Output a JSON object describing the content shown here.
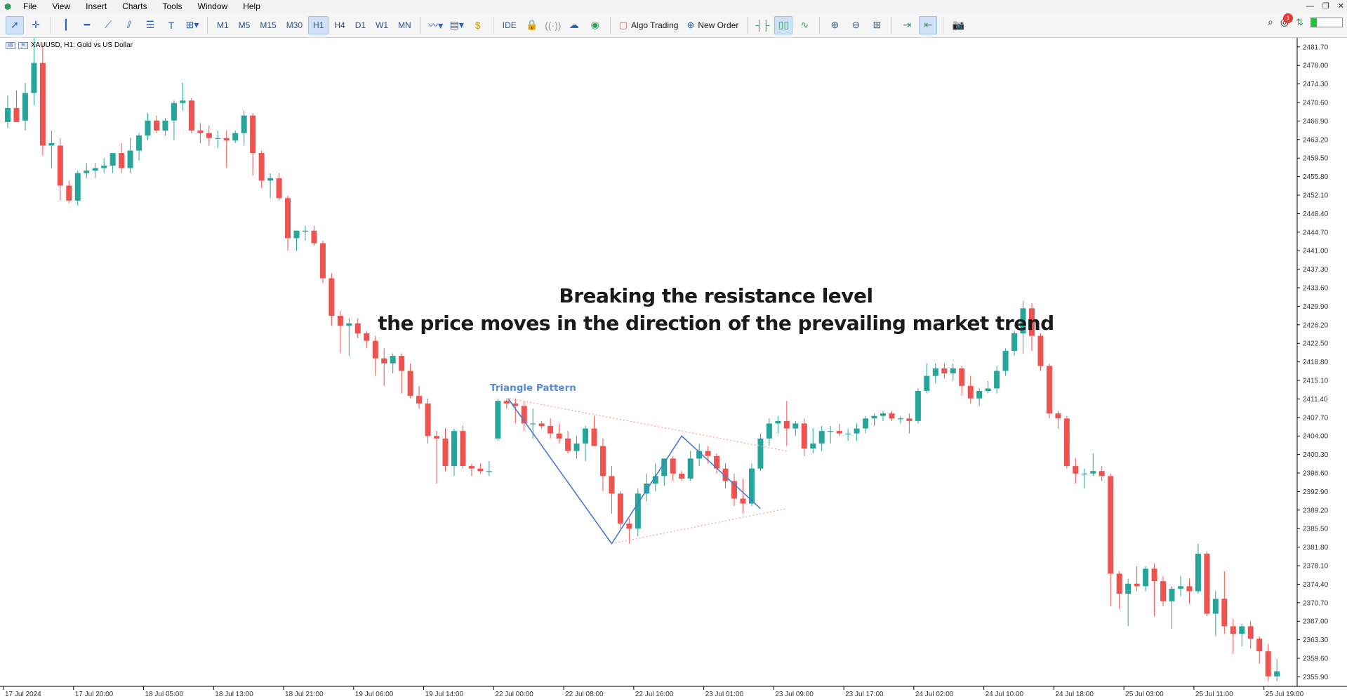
{
  "menu": {
    "items": [
      "File",
      "View",
      "Insert",
      "Charts",
      "Tools",
      "Window",
      "Help"
    ],
    "window_controls": [
      "—",
      "❐",
      "✕"
    ]
  },
  "toolbar": {
    "timeframes": [
      "M1",
      "M5",
      "M15",
      "M30",
      "H1",
      "H4",
      "D1",
      "W1",
      "MN"
    ],
    "active_timeframe": "H1",
    "ide_label": "IDE",
    "algo_trading_label": "Algo Trading",
    "new_order_label": "New Order",
    "notification_count": "1",
    "signal_strength": 0.18
  },
  "chart": {
    "symbol_label": "XAUUSD, H1:  Gold vs US Dollar",
    "annotation_line1": "Breaking the resistance level",
    "annotation_line2": "the price moves in the direction of the prevailing market trend",
    "pattern_label": "Triangle Pattern",
    "bull_color": "#26a69a",
    "bear_color": "#ef5350"
  },
  "chart_data": {
    "type": "candlestick",
    "price_axis_ticks": [
      "2481.70",
      "2478.00",
      "2474.30",
      "2470.60",
      "2466.90",
      "2463.20",
      "2459.50",
      "2455.80",
      "2452.10",
      "2448.40",
      "2444.70",
      "2441.00",
      "2437.30",
      "2433.60",
      "2429.90",
      "2426.20",
      "2422.50",
      "2418.80",
      "2415.10",
      "2411.40",
      "2407.70",
      "2404.00",
      "2400.30",
      "2396.60",
      "2392.90",
      "2389.20",
      "2385.50",
      "2381.80",
      "2378.10",
      "2374.40",
      "2370.70",
      "2367.00",
      "2363.30",
      "2359.60",
      "2355.90"
    ],
    "time_axis_ticks": [
      "17 Jul 2024",
      "17 Jul 20:00",
      "18 Jul 05:00",
      "18 Jul 13:00",
      "18 Jul 21:00",
      "19 Jul 06:00",
      "19 Jul 14:00",
      "22 Jul 00:00",
      "22 Jul 08:00",
      "22 Jul 16:00",
      "23 Jul 01:00",
      "23 Jul 09:00",
      "23 Jul 17:00",
      "24 Jul 02:00",
      "24 Jul 10:00",
      "24 Jul 18:00",
      "25 Jul 03:00",
      "25 Jul 11:00",
      "25 Jul 19:00"
    ],
    "ylim": [
      2354.0,
      2483.5
    ],
    "candles": [
      [
        2466.7,
        2472.0,
        2465.5,
        2469.5
      ],
      [
        2469.5,
        2473.0,
        2467.0,
        2466.7
      ],
      [
        2467.0,
        2474.5,
        2465.0,
        2472.5
      ],
      [
        2472.5,
        2485.0,
        2470.0,
        2478.5
      ],
      [
        2478.5,
        2482.5,
        2460.0,
        2462.0
      ],
      [
        2462.0,
        2465.0,
        2457.5,
        2462.5
      ],
      [
        2462.0,
        2463.5,
        2451.0,
        2454.0
      ],
      [
        2454.0,
        2455.0,
        2450.5,
        2451.0
      ],
      [
        2451.0,
        2457.0,
        2450.0,
        2456.5
      ],
      [
        2456.5,
        2458.5,
        2455.5,
        2457.0
      ],
      [
        2457.0,
        2458.5,
        2455.5,
        2457.5
      ],
      [
        2457.5,
        2459.5,
        2456.5,
        2458.0
      ],
      [
        2458.0,
        2460.5,
        2456.5,
        2460.5
      ],
      [
        2460.5,
        2462.5,
        2456.5,
        2457.5
      ],
      [
        2457.5,
        2463.5,
        2456.5,
        2461.0
      ],
      [
        2461.0,
        2464.5,
        2459.0,
        2464.0
      ],
      [
        2464.0,
        2468.5,
        2463.0,
        2467.0
      ],
      [
        2467.0,
        2468.0,
        2464.5,
        2465.0
      ],
      [
        2465.0,
        2467.5,
        2464.0,
        2467.0
      ],
      [
        2467.0,
        2471.0,
        2463.0,
        2470.5
      ],
      [
        2470.5,
        2474.5,
        2469.0,
        2471.0
      ],
      [
        2471.0,
        2471.5,
        2464.5,
        2465.0
      ],
      [
        2465.0,
        2466.5,
        2462.5,
        2464.5
      ],
      [
        2464.5,
        2466.0,
        2462.0,
        2463.5
      ],
      [
        2463.5,
        2465.0,
        2461.5,
        2463.5
      ],
      [
        2463.5,
        2465.0,
        2457.5,
        2463.0
      ],
      [
        2463.0,
        2465.0,
        2462.5,
        2464.5
      ],
      [
        2464.5,
        2469.0,
        2462.0,
        2468.0
      ],
      [
        2468.0,
        2468.5,
        2456.0,
        2460.5
      ],
      [
        2460.5,
        2461.0,
        2453.5,
        2455.0
      ],
      [
        2455.0,
        2456.5,
        2451.5,
        2455.5
      ],
      [
        2455.5,
        2456.5,
        2451.0,
        2451.5
      ],
      [
        2451.5,
        2452.0,
        2441.0,
        2443.5
      ],
      [
        2443.5,
        2445.0,
        2441.0,
        2445.0
      ],
      [
        2445.0,
        2446.0,
        2443.0,
        2445.0
      ],
      [
        2445.0,
        2446.0,
        2442.0,
        2442.5
      ],
      [
        2442.5,
        2443.0,
        2434.5,
        2435.5
      ],
      [
        2435.5,
        2436.5,
        2426.0,
        2428.0
      ],
      [
        2428.0,
        2429.0,
        2420.5,
        2426.0
      ],
      [
        2426.0,
        2427.5,
        2420.0,
        2426.5
      ],
      [
        2426.5,
        2427.5,
        2423.5,
        2424.5
      ],
      [
        2424.5,
        2425.0,
        2421.5,
        2423.0
      ],
      [
        2423.0,
        2424.0,
        2416.0,
        2419.5
      ],
      [
        2419.5,
        2421.5,
        2414.0,
        2418.5
      ],
      [
        2418.5,
        2420.5,
        2416.5,
        2420.0
      ],
      [
        2420.0,
        2420.5,
        2412.5,
        2417.0
      ],
      [
        2417.0,
        2418.5,
        2411.5,
        2412.0
      ],
      [
        2412.0,
        2414.0,
        2409.5,
        2410.5
      ],
      [
        2410.5,
        2411.5,
        2402.5,
        2404.0
      ],
      [
        2404.0,
        2405.0,
        2394.5,
        2403.5
      ],
      [
        2403.5,
        2405.5,
        2397.0,
        2398.0
      ],
      [
        2398.0,
        2405.5,
        2396.0,
        2405.0
      ],
      [
        2405.0,
        2406.0,
        2397.5,
        2398.0
      ],
      [
        2398.0,
        2398.5,
        2396.0,
        2397.5
      ],
      [
        2397.5,
        2398.5,
        2396.5,
        2397.0
      ],
      [
        2397.0,
        2399.0,
        2396.0,
        2397.0
      ],
      [
        2403.5,
        2411.5,
        2403.0,
        2411.0
      ],
      [
        2411.0,
        2411.5,
        2409.5,
        2410.5
      ],
      [
        2410.5,
        2411.5,
        2406.5,
        2410.0
      ],
      [
        2410.0,
        2411.0,
        2405.0,
        2406.5
      ],
      [
        2406.5,
        2409.5,
        2403.5,
        2406.5
      ],
      [
        2406.5,
        2407.0,
        2405.5,
        2406.0
      ],
      [
        2406.0,
        2407.5,
        2403.5,
        2404.5
      ],
      [
        2404.5,
        2406.5,
        2402.5,
        2403.5
      ],
      [
        2403.5,
        2405.0,
        2400.5,
        2401.0
      ],
      [
        2401.0,
        2404.0,
        2399.5,
        2402.5
      ],
      [
        2402.5,
        2406.0,
        2399.0,
        2405.5
      ],
      [
        2405.5,
        2408.0,
        2402.5,
        2402.0
      ],
      [
        2402.0,
        2403.5,
        2393.0,
        2396.0
      ],
      [
        2396.0,
        2398.0,
        2388.5,
        2392.5
      ],
      [
        2392.5,
        2393.0,
        2385.5,
        2386.5
      ],
      [
        2386.5,
        2387.5,
        2382.5,
        2385.5
      ],
      [
        2385.5,
        2393.5,
        2384.0,
        2392.5
      ],
      [
        2392.5,
        2396.5,
        2391.0,
        2394.5
      ],
      [
        2394.5,
        2398.5,
        2393.0,
        2396.0
      ],
      [
        2396.0,
        2399.5,
        2394.0,
        2399.5
      ],
      [
        2399.5,
        2400.0,
        2395.0,
        2396.5
      ],
      [
        2396.5,
        2397.0,
        2395.0,
        2395.5
      ],
      [
        2395.5,
        2401.0,
        2395.0,
        2399.5
      ],
      [
        2399.5,
        2402.5,
        2398.0,
        2401.0
      ],
      [
        2401.0,
        2402.0,
        2398.5,
        2400.0
      ],
      [
        2400.0,
        2400.5,
        2396.5,
        2397.5
      ],
      [
        2397.5,
        2398.5,
        2393.5,
        2395.0
      ],
      [
        2395.0,
        2396.5,
        2390.0,
        2391.5
      ],
      [
        2391.5,
        2395.5,
        2388.5,
        2390.5
      ],
      [
        2390.5,
        2398.5,
        2390.0,
        2397.5
      ],
      [
        2397.5,
        2404.5,
        2397.0,
        2403.5
      ],
      [
        2403.5,
        2407.5,
        2402.0,
        2406.5
      ],
      [
        2406.5,
        2408.0,
        2404.5,
        2407.0
      ],
      [
        2407.0,
        2411.0,
        2402.0,
        2405.5
      ],
      [
        2405.5,
        2407.0,
        2404.0,
        2406.5
      ],
      [
        2406.5,
        2407.5,
        2400.0,
        2401.5
      ],
      [
        2401.5,
        2405.5,
        2400.5,
        2402.5
      ],
      [
        2402.5,
        2406.0,
        2401.0,
        2405.0
      ],
      [
        2405.0,
        2406.0,
        2402.5,
        2405.0
      ],
      [
        2405.0,
        2406.5,
        2404.0,
        2404.5
      ],
      [
        2404.5,
        2405.5,
        2403.0,
        2404.5
      ],
      [
        2404.5,
        2406.5,
        2403.0,
        2405.5
      ],
      [
        2405.5,
        2408.0,
        2404.5,
        2407.5
      ],
      [
        2407.5,
        2408.5,
        2406.0,
        2408.0
      ],
      [
        2408.0,
        2409.0,
        2407.0,
        2408.5
      ],
      [
        2408.5,
        2409.0,
        2407.0,
        2407.5
      ],
      [
        2407.5,
        2408.0,
        2406.5,
        2407.5
      ],
      [
        2407.5,
        2408.5,
        2404.5,
        2407.0
      ],
      [
        2407.0,
        2413.5,
        2406.5,
        2413.0
      ],
      [
        2413.0,
        2418.5,
        2412.5,
        2416.0
      ],
      [
        2416.0,
        2418.5,
        2414.5,
        2417.5
      ],
      [
        2417.5,
        2418.5,
        2415.5,
        2416.5
      ],
      [
        2416.5,
        2418.5,
        2415.0,
        2417.5
      ],
      [
        2417.5,
        2418.0,
        2412.0,
        2414.0
      ],
      [
        2414.0,
        2416.0,
        2410.5,
        2411.5
      ],
      [
        2411.5,
        2413.5,
        2410.0,
        2413.0
      ],
      [
        2413.0,
        2415.0,
        2412.5,
        2413.5
      ],
      [
        2413.5,
        2418.0,
        2412.5,
        2417.0
      ],
      [
        2417.0,
        2421.5,
        2416.0,
        2421.0
      ],
      [
        2421.0,
        2425.0,
        2420.0,
        2424.5
      ],
      [
        2424.5,
        2431.0,
        2420.5,
        2429.5
      ],
      [
        2429.5,
        2430.5,
        2421.0,
        2424.0
      ],
      [
        2424.0,
        2424.5,
        2417.0,
        2418.0
      ],
      [
        2418.0,
        2418.5,
        2407.5,
        2408.5
      ],
      [
        2408.5,
        2409.0,
        2405.5,
        2407.5
      ],
      [
        2407.5,
        2408.0,
        2397.5,
        2398.0
      ],
      [
        2398.0,
        2399.5,
        2394.5,
        2396.5
      ],
      [
        2396.5,
        2397.5,
        2393.5,
        2396.5
      ],
      [
        2396.5,
        2400.5,
        2396.0,
        2397.0
      ],
      [
        2397.0,
        2398.0,
        2395.0,
        2396.0
      ],
      [
        2396.0,
        2396.5,
        2370.0,
        2376.5
      ],
      [
        2376.5,
        2377.0,
        2369.5,
        2372.5
      ],
      [
        2372.5,
        2375.5,
        2366.0,
        2374.5
      ],
      [
        2374.5,
        2378.0,
        2373.0,
        2374.0
      ],
      [
        2374.0,
        2378.0,
        2373.0,
        2377.5
      ],
      [
        2377.5,
        2378.5,
        2368.0,
        2375.0
      ],
      [
        2375.0,
        2376.0,
        2370.0,
        2371.0
      ],
      [
        2371.0,
        2374.0,
        2365.5,
        2373.5
      ],
      [
        2373.5,
        2376.0,
        2372.0,
        2374.0
      ],
      [
        2374.0,
        2375.5,
        2370.5,
        2373.0
      ],
      [
        2373.0,
        2382.5,
        2372.5,
        2380.5
      ],
      [
        2380.5,
        2381.0,
        2368.0,
        2368.5
      ],
      [
        2368.5,
        2373.0,
        2364.0,
        2371.5
      ],
      [
        2371.5,
        2377.0,
        2364.5,
        2366.0
      ],
      [
        2366.0,
        2367.5,
        2360.5,
        2364.5
      ],
      [
        2364.5,
        2366.5,
        2362.0,
        2366.0
      ],
      [
        2366.0,
        2367.0,
        2361.5,
        2363.5
      ],
      [
        2363.5,
        2364.0,
        2358.5,
        2361.0
      ],
      [
        2361.0,
        2362.5,
        2355.0,
        2356.0
      ],
      [
        2356.0,
        2359.5,
        2355.0,
        2357.0
      ]
    ],
    "triangle_pattern_price_points": [
      [
        2411.5,
        2382.5,
        2404.0,
        2389.5
      ]
    ],
    "resistance_line": [
      2411.5,
      2401.0
    ],
    "support_line": [
      2382.5,
      2389.5
    ]
  }
}
